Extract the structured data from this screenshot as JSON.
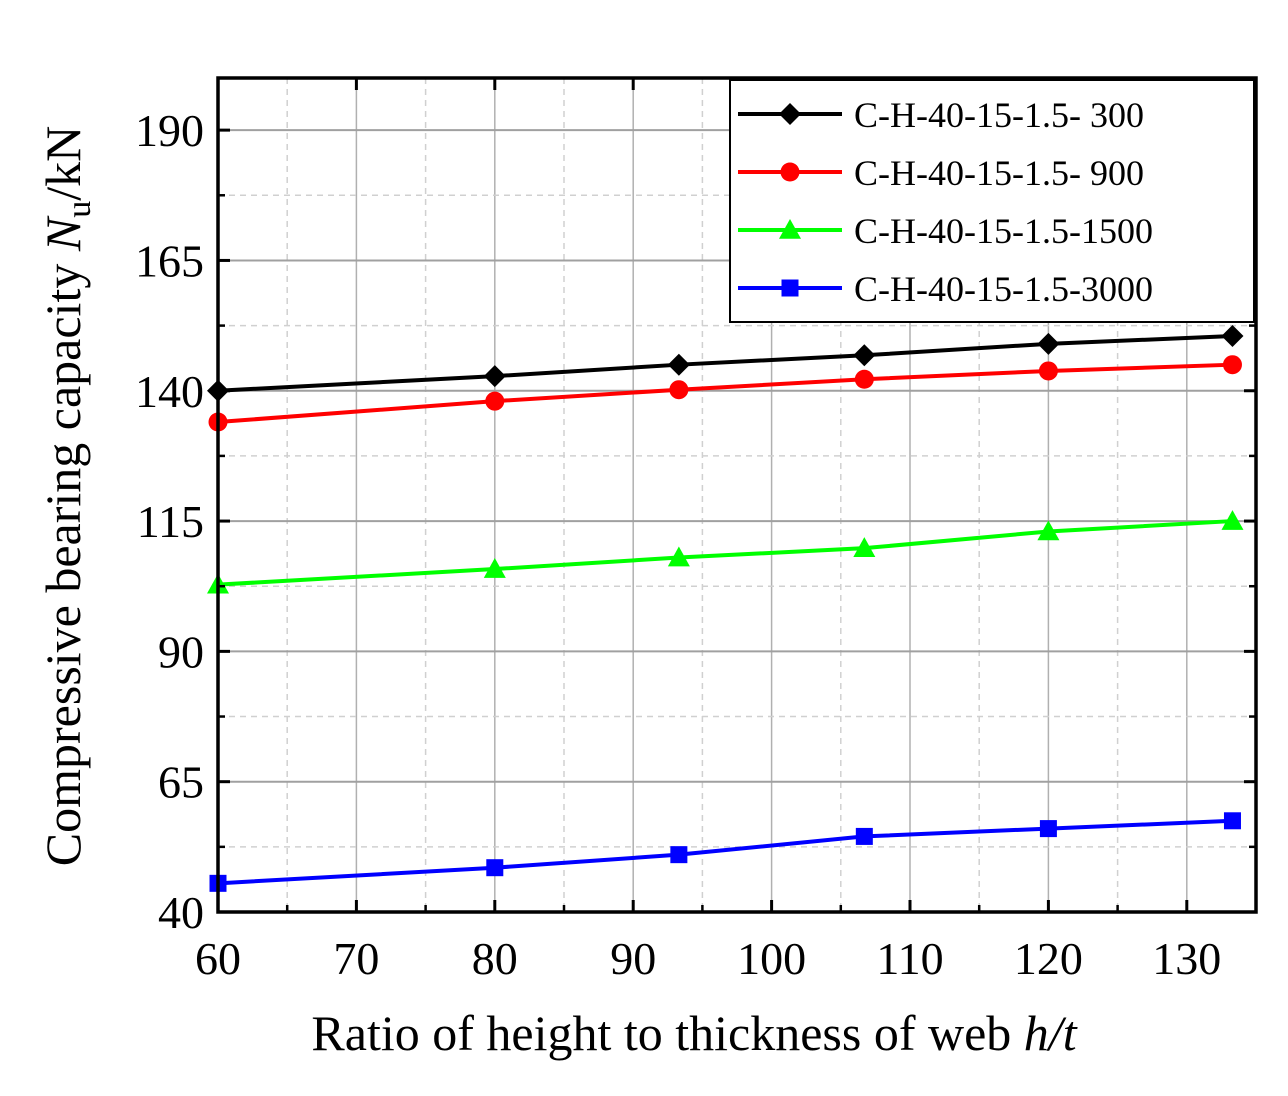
{
  "chart_data": {
    "type": "line",
    "title": "",
    "xlabel_prefix": "Ratio of height to thickness of web ",
    "xlabel_var": "h/t",
    "ylabel_prefix": "Compressive bearing capacity ",
    "ylabel_var": "N",
    "ylabel_sub": "u",
    "ylabel_suffix": "/kN",
    "xlim": [
      60,
      135
    ],
    "ylim": [
      40,
      200
    ],
    "x_ticks": [
      60,
      70,
      80,
      90,
      100,
      110,
      120,
      130
    ],
    "y_ticks": [
      40,
      65,
      90,
      115,
      140,
      165,
      190
    ],
    "grid": true,
    "legend_position": "top-right",
    "x": [
      60,
      80,
      93.3,
      106.7,
      120,
      133.3
    ],
    "series": [
      {
        "name": "C-H-40-15-1.5- 300",
        "color": "#000000",
        "marker": "diamond",
        "values": [
          140,
          142.8,
          145,
          146.8,
          149,
          150.5
        ]
      },
      {
        "name": "C-H-40-15-1.5- 900",
        "color": "#ff0000",
        "marker": "circle",
        "values": [
          134,
          138,
          140.2,
          142.2,
          143.8,
          145
        ]
      },
      {
        "name": "C-H-40-15-1.5-1500",
        "color": "#00ff00",
        "marker": "triangle",
        "values": [
          102.8,
          105.8,
          108,
          109.8,
          113,
          115
        ]
      },
      {
        "name": "C-H-40-15-1.5-3000",
        "color": "#0000ff",
        "marker": "square",
        "values": [
          45.5,
          48.5,
          51,
          54.5,
          56,
          57.5
        ]
      }
    ]
  }
}
